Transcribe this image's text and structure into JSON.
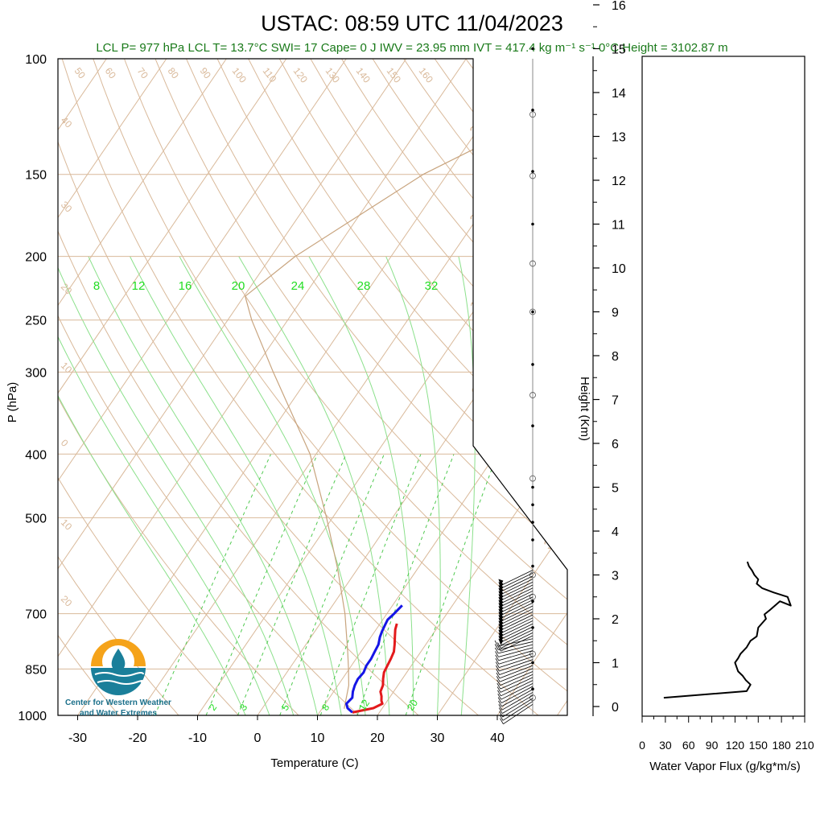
{
  "title": "USTAC: 08:59 UTC 11/04/2023",
  "stats_line": "LCL P= 977 hPa  LCL T= 13.7°C  SWI= 17  Cape= 0 J  IWV = 23.95 mm  IVT = 417.4 kg m⁻¹ s⁻¹  0°C Height = 3102.87 m",
  "colors": {
    "title": "#000000",
    "stats": "#1a7a1a",
    "isotherm": "#d9b99a",
    "dry_adiabat": "#d9b99a",
    "moist_adiabat": "#8be08b",
    "mixing_ratio": "#4fc94f",
    "temperature": "#e31a1c",
    "dewpoint": "#1515e6",
    "parcel": "#c8a47e",
    "axis": "#000000",
    "logo_orange": "#f5a31a",
    "logo_teal": "#1a7f9a"
  },
  "logo": {
    "line1": "Center for Western Weather",
    "line2": "and Water Extremes"
  },
  "chart_data": [
    {
      "type": "line",
      "name": "skew-t",
      "xlabel": "Temperature (C)",
      "ylabel": "P (hPa)",
      "xlim": [
        -35,
        50
      ],
      "ylim": [
        1000,
        100
      ],
      "log_y": true,
      "x_ticks": [
        "-30",
        "-20",
        "-10",
        "0",
        "10",
        "20",
        "30",
        "40"
      ],
      "y_ticks": [
        "100",
        "150",
        "200",
        "250",
        "300",
        "400",
        "500",
        "700",
        "850",
        "1000"
      ],
      "isotherm_labels_right": [
        "30",
        "20",
        "10",
        "0",
        "10",
        "20",
        "30"
      ],
      "isotherm_labels_left": [
        "40",
        "30",
        "20",
        "10",
        "0",
        "10",
        "20"
      ],
      "dry_adiabat_labels": [
        "50",
        "60",
        "70",
        "80",
        "90",
        "100",
        "110",
        "120",
        "130",
        "140",
        "150",
        "160"
      ],
      "moist_adiabat_labels": [
        "8",
        "12",
        "16",
        "20",
        "24",
        "28",
        "32"
      ],
      "mixing_ratio_labels": [
        "2",
        "3",
        "5",
        "8",
        "12",
        "20"
      ],
      "series": [
        {
          "key": "temperature",
          "p": [
            990,
            975,
            960,
            950,
            935,
            920,
            900,
            880,
            860,
            840,
            820,
            800,
            780,
            760,
            740,
            725
          ],
          "t": [
            15.5,
            18.5,
            19.5,
            19.0,
            18.5,
            17.8,
            17.5,
            16.8,
            16.2,
            16.0,
            15.8,
            15.5,
            14.8,
            14.0,
            13.2,
            12.8
          ]
        },
        {
          "key": "dewpoint",
          "p": [
            990,
            975,
            960,
            940,
            920,
            900,
            880,
            860,
            840,
            820,
            800,
            780,
            760,
            745,
            730,
            715,
            700,
            680
          ],
          "t": [
            15.5,
            14.2,
            13.5,
            13.8,
            13.2,
            12.8,
            12.6,
            12.8,
            12.5,
            12.5,
            12.3,
            12.1,
            11.5,
            11.2,
            11.0,
            10.8,
            11.2,
            11.6
          ]
        },
        {
          "key": "parcel",
          "p": [
            977,
            900,
            850,
            800,
            700,
            600,
            500,
            400,
            300,
            250,
            230,
            200,
            150,
            120
          ],
          "t": [
            13.7,
            11.8,
            9.9,
            7.8,
            3.0,
            -3.2,
            -11.0,
            -21.0,
            -36.5,
            -46.0,
            -49.8,
            -46.0,
            -34.0,
            -20.0
          ]
        }
      ],
      "wind_dots_km": [
        16.2,
        15.0,
        13.6,
        12.2,
        11.0,
        9.0,
        7.8,
        6.4,
        5.0,
        4.6,
        4.2,
        3.8,
        3.2,
        2.4,
        1.8,
        1.0,
        0.4
      ]
    },
    {
      "type": "line",
      "name": "height-axis",
      "ylabel": "Height (Km)",
      "y_ticks": [
        "0",
        "1",
        "2",
        "3",
        "4",
        "5",
        "6",
        "7",
        "8",
        "9",
        "10",
        "11",
        "12",
        "13",
        "14",
        "15",
        "16"
      ]
    },
    {
      "type": "line",
      "name": "water-vapor-flux",
      "xlabel": "Water Vapor Flux (g/kg*m/s)",
      "xlim": [
        0,
        210
      ],
      "ylim": [
        0,
        16.5
      ],
      "x_ticks": [
        "0",
        "30",
        "60",
        "90",
        "120",
        "150",
        "180",
        "210"
      ],
      "flux": [
        28,
        135,
        140,
        134,
        130,
        124,
        120,
        124,
        127,
        135,
        140,
        148,
        150,
        160,
        158,
        165,
        178,
        192,
        188,
        170,
        155,
        148,
        150,
        145,
        142,
        138,
        136
      ],
      "z_km": [
        0.2,
        0.35,
        0.5,
        0.6,
        0.7,
        0.8,
        1.0,
        1.1,
        1.2,
        1.35,
        1.5,
        1.6,
        1.8,
        2.0,
        2.1,
        2.2,
        2.4,
        2.3,
        2.5,
        2.6,
        2.7,
        2.8,
        2.9,
        3.0,
        3.1,
        3.2,
        3.3
      ]
    }
  ]
}
